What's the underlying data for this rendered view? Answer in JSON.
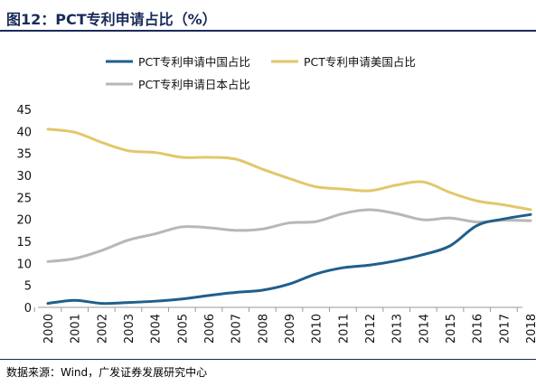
{
  "title": "图12：PCT专利申请占比（%）",
  "source": "数据来源：Wind，广发证券发展研究中心",
  "chart_data": {
    "type": "line",
    "title": "图12：PCT专利申请占比（%）",
    "xlabel": "",
    "ylabel": "",
    "x": [
      "2000",
      "2001",
      "2002",
      "2003",
      "2004",
      "2005",
      "2006",
      "2007",
      "2008",
      "2009",
      "2010",
      "2011",
      "2012",
      "2013",
      "2014",
      "2015",
      "2016",
      "2017",
      "2018"
    ],
    "ylim": [
      0,
      45
    ],
    "yticks": [
      0,
      5,
      10,
      15,
      20,
      25,
      30,
      35,
      40,
      45
    ],
    "grid": false,
    "legend_position": "top",
    "series": [
      {
        "name": "PCT专利申请中国占比",
        "color": "#1f5f8b",
        "values": [
          0.9,
          1.6,
          0.9,
          1.1,
          1.4,
          1.9,
          2.7,
          3.4,
          3.9,
          5.3,
          7.6,
          9.0,
          9.6,
          10.6,
          12.0,
          14.0,
          18.6,
          20.1,
          21.1
        ]
      },
      {
        "name": "PCT专利申请美国占比",
        "color": "#e2c76a",
        "values": [
          40.5,
          39.8,
          37.5,
          35.6,
          35.2,
          34.1,
          34.1,
          33.7,
          31.4,
          29.3,
          27.4,
          26.9,
          26.5,
          27.8,
          28.5,
          26.1,
          24.2,
          23.3,
          22.2
        ]
      },
      {
        "name": "PCT专利申请日本占比",
        "color": "#b7b7b7",
        "values": [
          10.4,
          11.1,
          12.9,
          15.3,
          16.7,
          18.3,
          18.1,
          17.5,
          17.8,
          19.2,
          19.5,
          21.3,
          22.2,
          21.3,
          19.9,
          20.3,
          19.4,
          19.8,
          19.7
        ]
      }
    ]
  }
}
